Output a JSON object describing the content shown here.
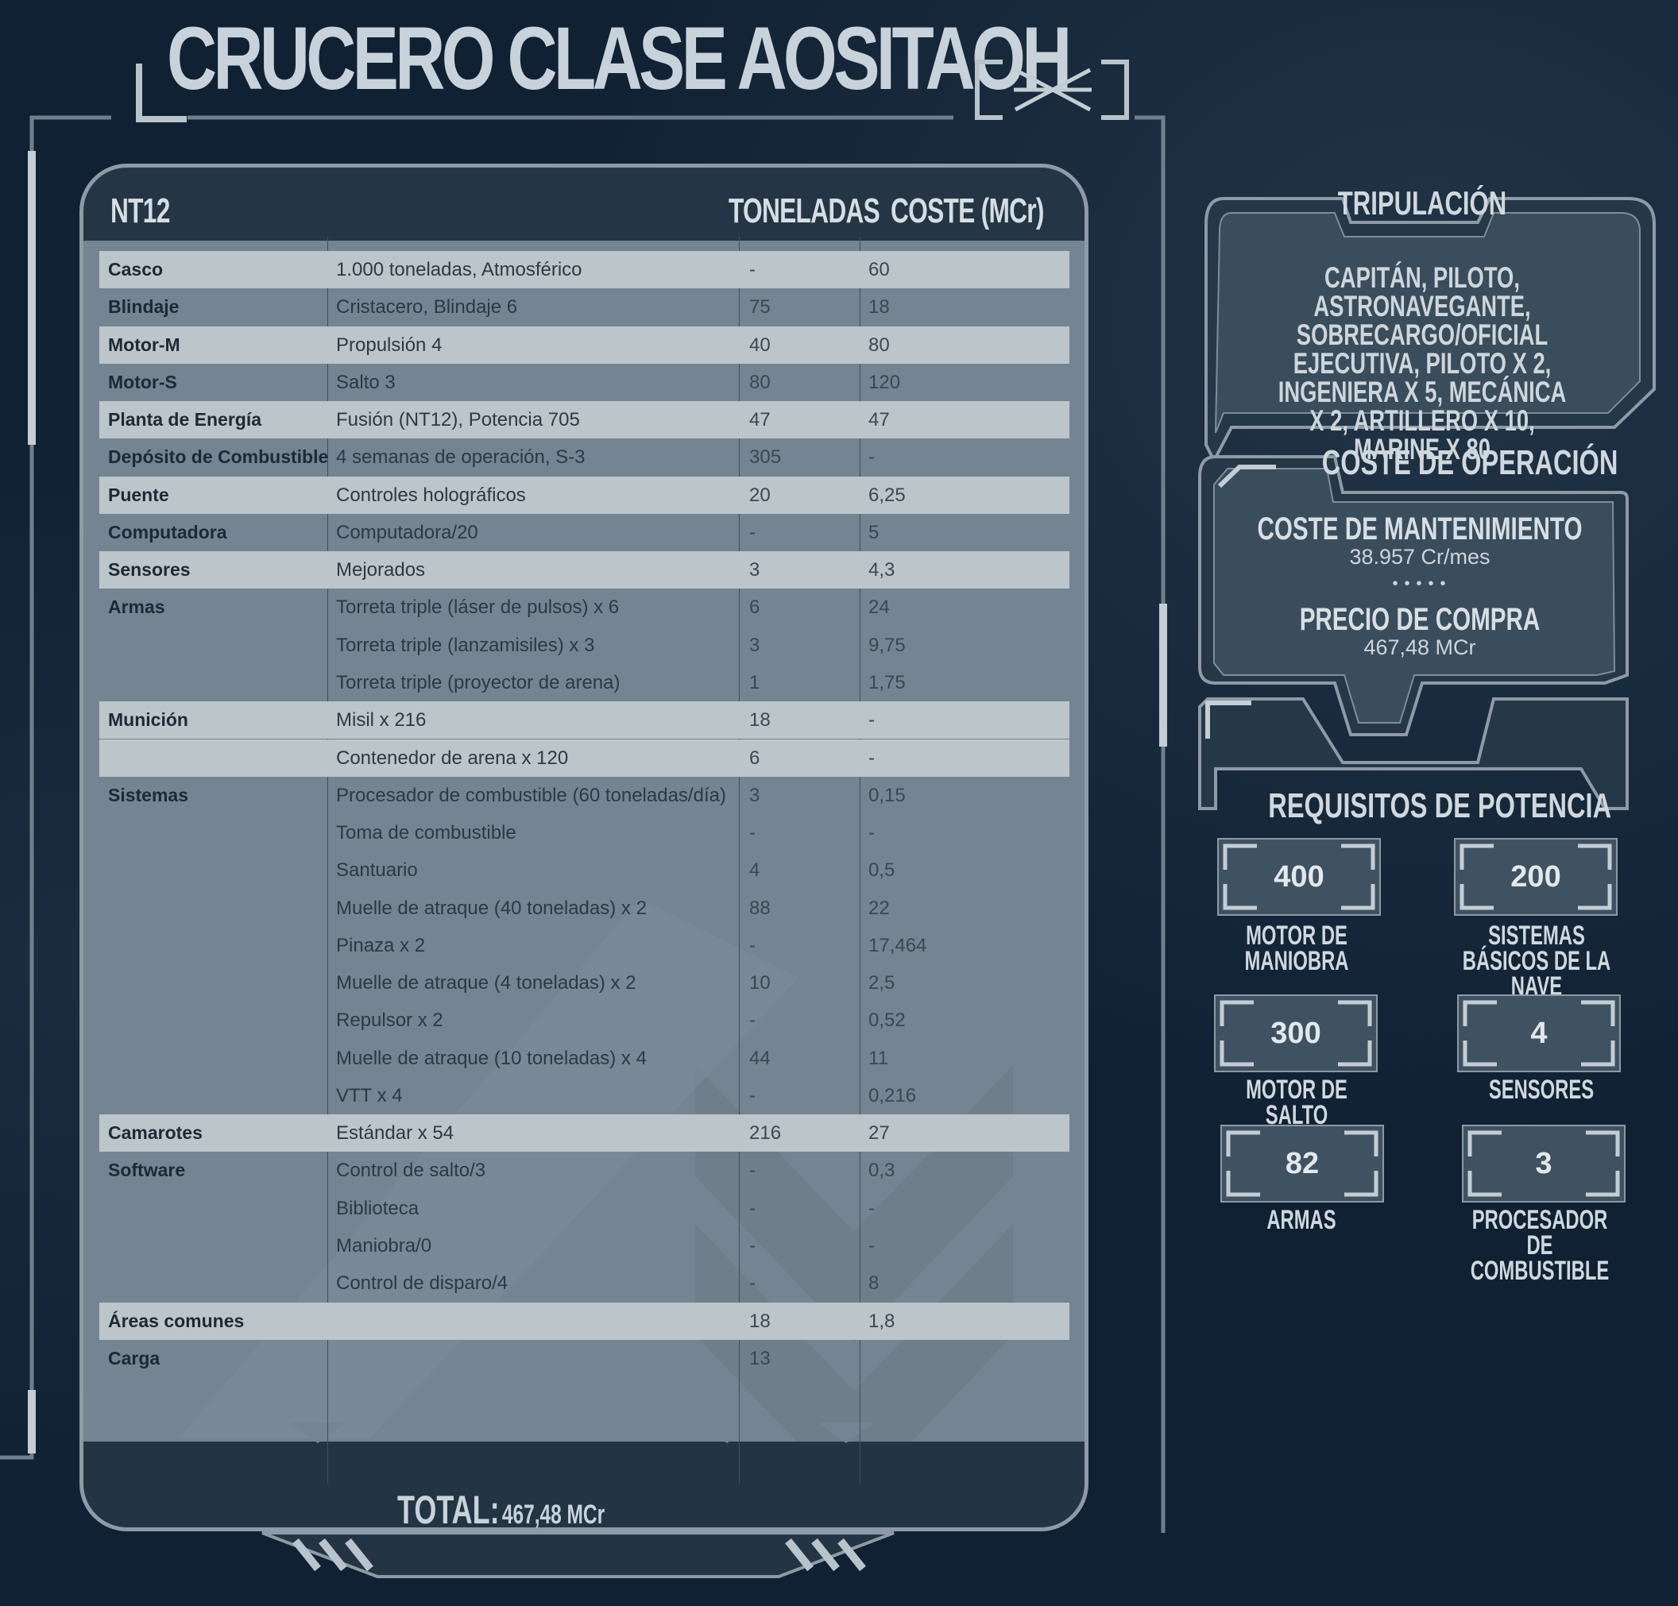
{
  "title": "CRUCERO CLASE AOSITAOH",
  "table": {
    "header": {
      "label": "NT12",
      "col_tons": "TONELADAS",
      "col_cost": "COSTE (MCr)"
    },
    "rows": [
      {
        "name": "Casco",
        "item": "1.000 toneladas, Atmosférico",
        "tons": "-",
        "cost": "60",
        "hl": true
      },
      {
        "name": "Blindaje",
        "item": "Cristacero, Blindaje 6",
        "tons": "75",
        "cost": "18",
        "hl": false
      },
      {
        "name": "Motor-M",
        "item": "Propulsión 4",
        "tons": "40",
        "cost": "80",
        "hl": true
      },
      {
        "name": "Motor-S",
        "item": "Salto 3",
        "tons": "80",
        "cost": "120",
        "hl": false
      },
      {
        "name": "Planta de Energía",
        "item": "Fusión (NT12), Potencia 705",
        "tons": "47",
        "cost": "47",
        "hl": true
      },
      {
        "name": "Depósito de Combustible",
        "item": "4 semanas de operación, S-3",
        "tons": "305",
        "cost": "-",
        "hl": false
      },
      {
        "name": "Puente",
        "item": "Controles holográficos",
        "tons": "20",
        "cost": "6,25",
        "hl": true
      },
      {
        "name": "Computadora",
        "item": "Computadora/20",
        "tons": "-",
        "cost": "5",
        "hl": false
      },
      {
        "name": "Sensores",
        "item": "Mejorados",
        "tons": "3",
        "cost": "4,3",
        "hl": true
      },
      {
        "name": "Armas",
        "item": "Torreta triple (láser de pulsos) x 6",
        "tons": "6",
        "cost": "24",
        "hl": false
      },
      {
        "name": "",
        "item": "Torreta triple (lanzamisiles) x 3",
        "tons": "3",
        "cost": "9,75",
        "hl": false
      },
      {
        "name": "",
        "item": "Torreta triple (proyector de arena)",
        "tons": "1",
        "cost": "1,75",
        "hl": false
      },
      {
        "name": "Munición",
        "item": "Misil x 216",
        "tons": "18",
        "cost": "-",
        "hl": true
      },
      {
        "name": "",
        "item": "Contenedor de arena x 120",
        "tons": "6",
        "cost": "-",
        "hl": true
      },
      {
        "name": "Sistemas",
        "item": "Procesador de combustible (60 toneladas/día)",
        "tons": "3",
        "cost": "0,15",
        "hl": false
      },
      {
        "name": "",
        "item": "Toma de combustible",
        "tons": "-",
        "cost": "-",
        "hl": false
      },
      {
        "name": "",
        "item": "Santuario",
        "tons": "4",
        "cost": "0,5",
        "hl": false
      },
      {
        "name": "",
        "item": "Muelle de atraque (40 toneladas) x 2",
        "tons": "88",
        "cost": "22",
        "hl": false
      },
      {
        "name": "",
        "item": "Pinaza x 2",
        "tons": "-",
        "cost": "17,464",
        "hl": false
      },
      {
        "name": "",
        "item": "Muelle de atraque (4 toneladas) x 2",
        "tons": "10",
        "cost": "2,5",
        "hl": false
      },
      {
        "name": "",
        "item": "Repulsor x 2",
        "tons": "-",
        "cost": "0,52",
        "hl": false
      },
      {
        "name": "",
        "item": "Muelle de atraque (10 toneladas) x 4",
        "tons": "44",
        "cost": "11",
        "hl": false
      },
      {
        "name": "",
        "item": "VTT x 4",
        "tons": "-",
        "cost": "0,216",
        "hl": false
      },
      {
        "name": "Camarotes",
        "item": "Estándar x 54",
        "tons": "216",
        "cost": "27",
        "hl": true
      },
      {
        "name": "Software",
        "item": "Control de salto/3",
        "tons": "-",
        "cost": "0,3",
        "hl": false
      },
      {
        "name": "",
        "item": "Biblioteca",
        "tons": "-",
        "cost": "-",
        "hl": false
      },
      {
        "name": "",
        "item": "Maniobra/0",
        "tons": "-",
        "cost": "-",
        "hl": false
      },
      {
        "name": "",
        "item": "Control de disparo/4",
        "tons": "-",
        "cost": "8",
        "hl": false
      },
      {
        "name": "Áreas comunes",
        "item": "",
        "tons": "18",
        "cost": "1,8",
        "hl": true
      },
      {
        "name": "Carga",
        "item": "",
        "tons": "13",
        "cost": "",
        "hl": false
      }
    ],
    "total_label": "TOTAL:",
    "total_value": "467,48 MCr"
  },
  "crew": {
    "title": "TRIPULACIÓN",
    "text": "CAPITÁN, PILOTO, ASTRONAVEGANTE, SOBRECARGO/OFICIAL EJECUTIVA, PILOTO X 2, INGENIERA X 5, MECÁNICA X 2, ARTILLERO X 10, MARINE X 80"
  },
  "operation": {
    "title": "COSTE DE OPERACIÓN",
    "maintenance_label": "COSTE DE MANTENIMIENTO",
    "maintenance_value": "38.957 Cr/mes",
    "purchase_label": "PRECIO DE COMPRA",
    "purchase_value": "467,48 MCr"
  },
  "power": {
    "title": "REQUISITOS DE POTENCIA",
    "items": [
      {
        "value": "400",
        "label": "MOTOR DE MANIOBRA"
      },
      {
        "value": "200",
        "label": "SISTEMAS BÁSICOS DE LA NAVE"
      },
      {
        "value": "300",
        "label": "MOTOR DE SALTO"
      },
      {
        "value": "4",
        "label": "SENSORES"
      },
      {
        "value": "82",
        "label": "ARMAS"
      },
      {
        "value": "3",
        "label": "PROCESADOR DE COMBUSTIBLE"
      }
    ]
  },
  "colors": {
    "background": "#0f2133",
    "card": "#748492",
    "highlight_row": "#bcc5c9",
    "header": "#243646"
  }
}
